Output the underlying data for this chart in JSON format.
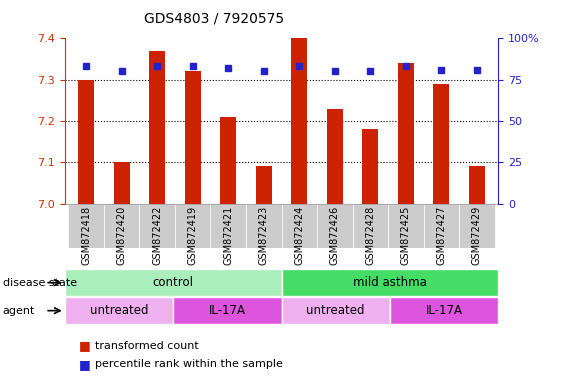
{
  "title": "GDS4803 / 7920575",
  "samples": [
    "GSM872418",
    "GSM872420",
    "GSM872422",
    "GSM872419",
    "GSM872421",
    "GSM872423",
    "GSM872424",
    "GSM872426",
    "GSM872428",
    "GSM872425",
    "GSM872427",
    "GSM872429"
  ],
  "red_values": [
    7.3,
    7.1,
    7.37,
    7.32,
    7.21,
    7.09,
    7.4,
    7.23,
    7.18,
    7.34,
    7.29,
    7.09
  ],
  "blue_values": [
    83,
    80,
    83,
    83,
    82,
    80,
    83,
    80,
    80,
    83,
    81,
    81
  ],
  "ylim_left": [
    7.0,
    7.4
  ],
  "ylim_right": [
    0,
    100
  ],
  "yticks_left": [
    7.0,
    7.1,
    7.2,
    7.3,
    7.4
  ],
  "yticks_right": [
    0,
    25,
    50,
    75,
    100
  ],
  "bar_color": "#cc2200",
  "dot_color": "#2222cc",
  "grid_color": "#000000",
  "disease_state_groups": [
    {
      "label": "control",
      "start": 0,
      "end": 6,
      "color": "#aaeebb"
    },
    {
      "label": "mild asthma",
      "start": 6,
      "end": 12,
      "color": "#44dd66"
    }
  ],
  "agent_groups": [
    {
      "label": "untreated",
      "start": 0,
      "end": 3,
      "color": "#eeb0ee"
    },
    {
      "label": "IL-17A",
      "start": 3,
      "end": 6,
      "color": "#dd55dd"
    },
    {
      "label": "untreated",
      "start": 6,
      "end": 9,
      "color": "#eeb0ee"
    },
    {
      "label": "IL-17A",
      "start": 9,
      "end": 12,
      "color": "#dd55dd"
    }
  ],
  "legend_red_label": "transformed count",
  "legend_blue_label": "percentile rank within the sample",
  "disease_state_label": "disease state",
  "agent_label": "agent",
  "tick_color_left": "#cc3300",
  "tick_color_right": "#2222cc",
  "bar_width": 0.45,
  "xtick_bg_color": "#cccccc",
  "sample_fontsize": 7,
  "title_fontsize": 10
}
